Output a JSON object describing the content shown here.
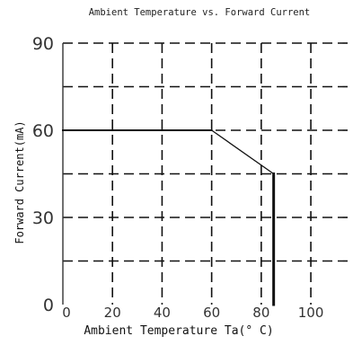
{
  "chart_data": {
    "type": "line",
    "title": "Ambient Temperature vs. Forward Current",
    "xlabel": "Ambient Temperature Ta(° C)",
    "ylabel": "Forward Current(mA)",
    "x_ticks": [
      0,
      20,
      40,
      60,
      80,
      100
    ],
    "y_ticks": [
      0,
      30,
      60,
      90
    ],
    "xlim": [
      0,
      117
    ],
    "ylim": [
      0,
      90
    ],
    "grid": true,
    "grid_style": "dashed",
    "x_grid_step": 20,
    "y_grid_step": 15,
    "colors": {
      "line": "#111111",
      "grid": "#111111",
      "axis": "#333333",
      "background": "#ffffff"
    },
    "series": [
      {
        "points": [
          {
            "x": 0,
            "y": 60
          },
          {
            "x": 60,
            "y": 60
          },
          {
            "x": 85,
            "y": 45
          },
          {
            "x": 85,
            "y": 0
          }
        ]
      }
    ]
  }
}
